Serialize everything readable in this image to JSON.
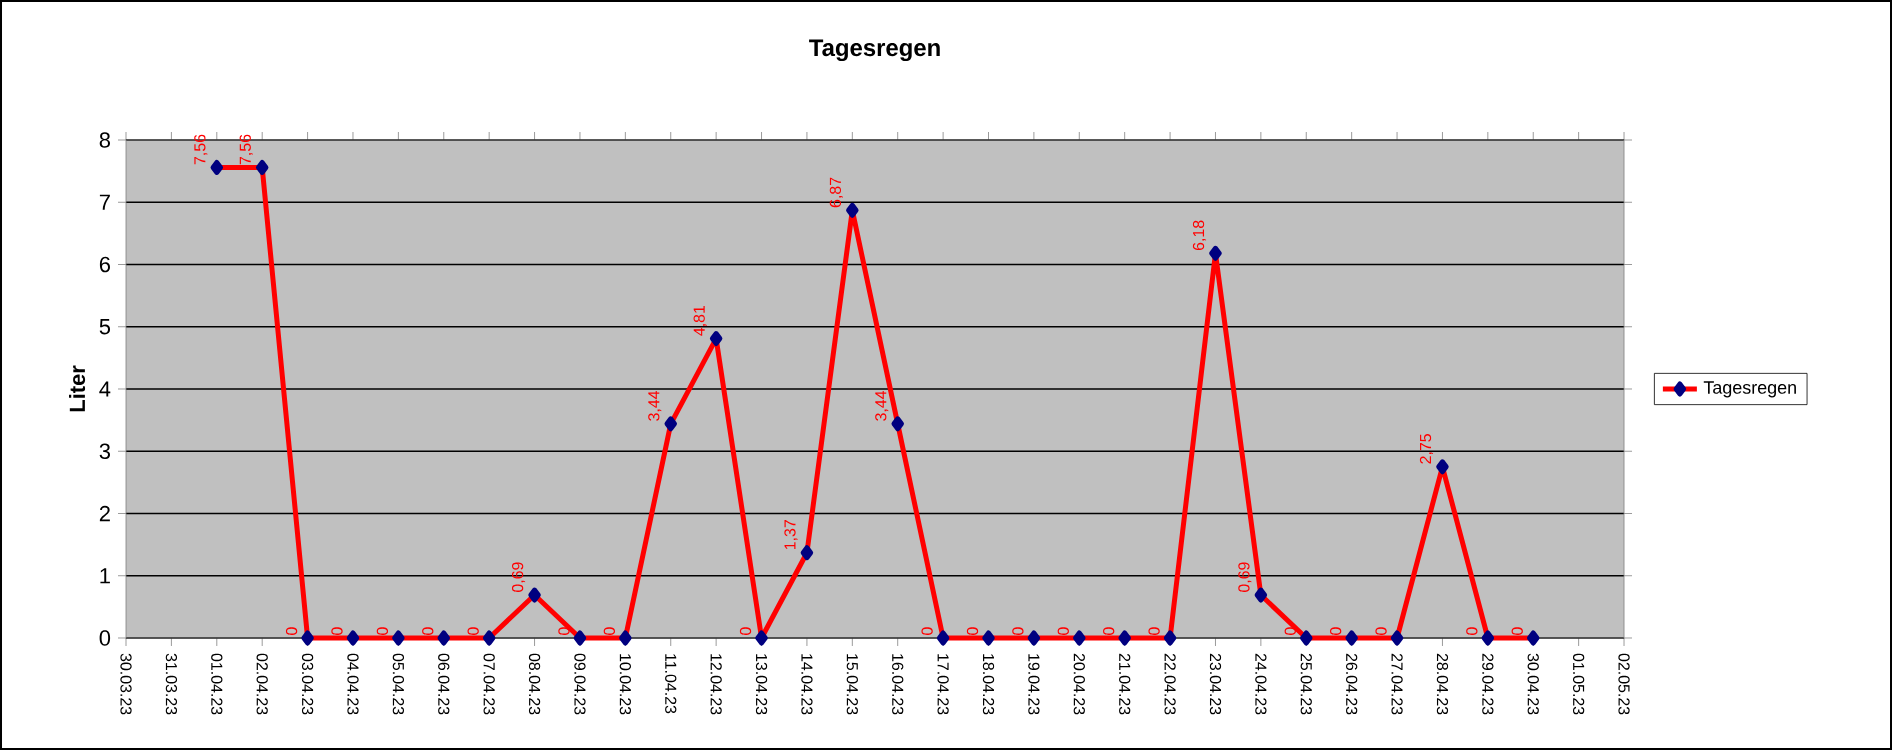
{
  "chart_data": {
    "type": "line",
    "title": "Tagesregen",
    "ylabel": "Liter",
    "categories": [
      "30.03.23",
      "31.03.23",
      "01.04.23",
      "02.04.23",
      "03.04.23",
      "04.04.23",
      "05.04.23",
      "06.04.23",
      "07.04.23",
      "08.04.23",
      "09.04.23",
      "10.04.23",
      "11.04.23",
      "12.04.23",
      "13.04.23",
      "14.04.23",
      "15.04.23",
      "16.04.23",
      "17.04.23",
      "18.04.23",
      "19.04.23",
      "20.04.23",
      "21.04.23",
      "22.04.23",
      "23.04.23",
      "24.04.23",
      "25.04.23",
      "26.04.23",
      "27.04.23",
      "28.04.23",
      "29.04.23",
      "30.04.23",
      "01.05.23",
      "02.05.23"
    ],
    "series": [
      {
        "name": "Tagesregen",
        "color": "#ff0000",
        "values": [
          null,
          null,
          7.56,
          7.56,
          0,
          0,
          0,
          0,
          0,
          0.69,
          0,
          0,
          3.44,
          4.81,
          0,
          1.37,
          6.87,
          3.44,
          0,
          0,
          0,
          0,
          0,
          0,
          6.18,
          0.69,
          0,
          0,
          0,
          2.75,
          0,
          0,
          null,
          null
        ],
        "value_labels": [
          null,
          null,
          "7,56",
          "7,56",
          "0",
          "0",
          "0",
          "0",
          "0",
          "0,69",
          "0",
          "0",
          "3,44",
          "4,81",
          "0",
          "1,37",
          "6,87",
          "3,44",
          "0",
          "0",
          "0",
          "0",
          "0",
          "0",
          "6,18",
          "0,69",
          "0",
          "0",
          "0",
          "2,75",
          "0",
          "0",
          null,
          null
        ]
      }
    ],
    "ylim": [
      0,
      8
    ],
    "yticks": [
      0,
      1,
      2,
      3,
      4,
      5,
      6,
      7,
      8
    ],
    "grid": "y",
    "legend": "right",
    "marker": "diamond",
    "line_style": "solid"
  }
}
